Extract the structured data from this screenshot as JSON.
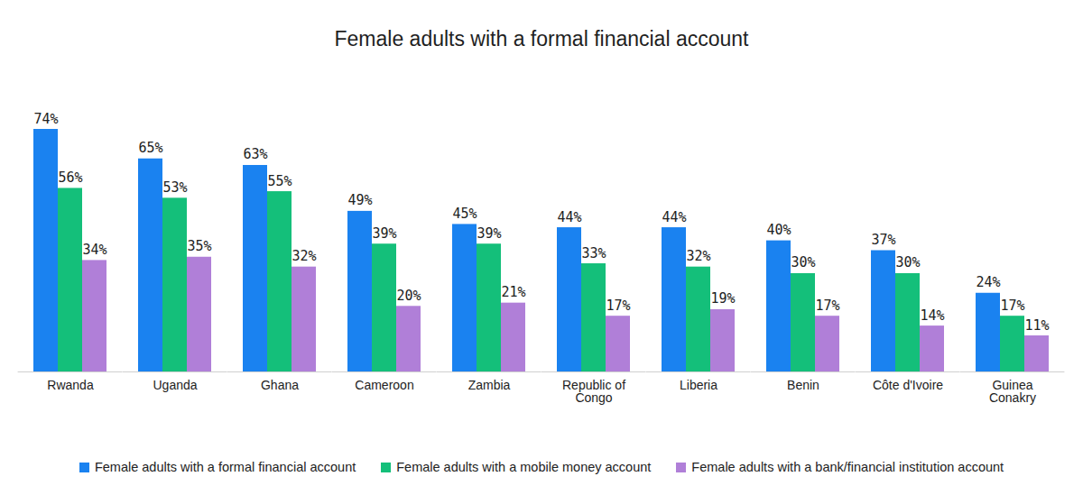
{
  "chart_data": {
    "type": "bar",
    "title": "Female adults with a formal financial account",
    "categories": [
      "Rwanda",
      "Uganda",
      "Ghana",
      "Cameroon",
      "Zambia",
      "Republic of Congo",
      "Liberia",
      "Benin",
      "Côte d'Ivoire",
      "Guinea Conakry"
    ],
    "series": [
      {
        "name": "Female adults with a formal financial account",
        "color": "#1a82f0",
        "values": [
          74,
          65,
          63,
          49,
          45,
          44,
          44,
          40,
          37,
          24
        ],
        "value_labels": [
          "74%",
          "65%",
          "63%",
          "49%",
          "45%",
          "44%",
          "44%",
          "40%",
          "37%",
          "24%"
        ]
      },
      {
        "name": "Female adults with a mobile money account",
        "color": "#14bf7a",
        "values": [
          56,
          53,
          55,
          39,
          39,
          33,
          32,
          30,
          30,
          17
        ],
        "value_labels": [
          "56%",
          "53%",
          "55%",
          "39%",
          "39%",
          "33%",
          "32%",
          "30%",
          "30%",
          "17%"
        ]
      },
      {
        "name": "Female adults with a bank/financial institution account",
        "color": "#b07fd8",
        "values": [
          34,
          35,
          32,
          20,
          21,
          17,
          19,
          17,
          14,
          11
        ],
        "value_labels": [
          "34%",
          "35%",
          "32%",
          "20%",
          "21%",
          "17%",
          "19%",
          "17%",
          "14%",
          "11%"
        ]
      }
    ],
    "ylim": [
      0,
      74
    ],
    "tick_labels": "x",
    "grid": false,
    "data_labels": true,
    "legend": "bottom"
  }
}
